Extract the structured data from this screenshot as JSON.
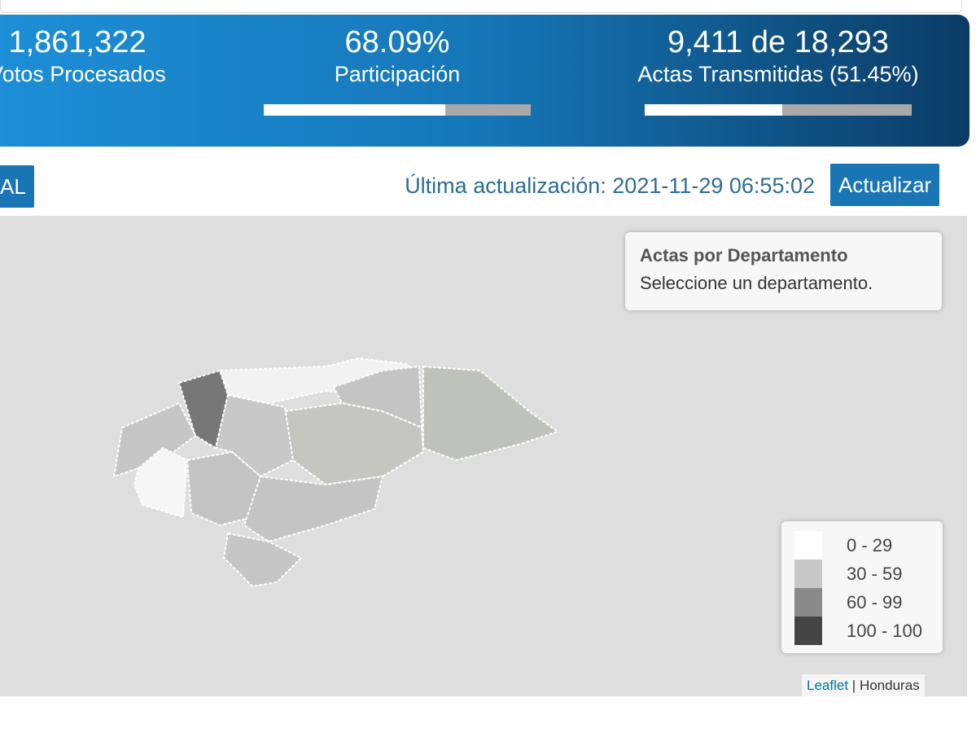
{
  "banner": {
    "stats": [
      {
        "number": "1,861,322",
        "label": "Votos Procesados"
      },
      {
        "number": "68.09%",
        "label": "Participación",
        "progress": 68.09
      },
      {
        "number": "9,411 de 18,293",
        "label": "Actas Transmitidas (51.45%)",
        "progress": 51.45
      }
    ]
  },
  "toolbar": {
    "level_button": "AL",
    "last_update": "Última actualización: 2021-11-29 06:55:02",
    "refresh_button": "Actualizar"
  },
  "map": {
    "info_title": "Actas por Departamento",
    "info_text": "Seleccione un departamento.",
    "legend": [
      {
        "label": "0 - 29",
        "color": "#ffffff"
      },
      {
        "label": "30 - 59",
        "color": "#c8c8c8"
      },
      {
        "label": "60 - 99",
        "color": "#8a8a8a"
      },
      {
        "label": "100 - 100",
        "color": "#444444"
      }
    ],
    "attribution": {
      "link": "Leaflet",
      "separator": "|",
      "source": "Honduras"
    }
  }
}
